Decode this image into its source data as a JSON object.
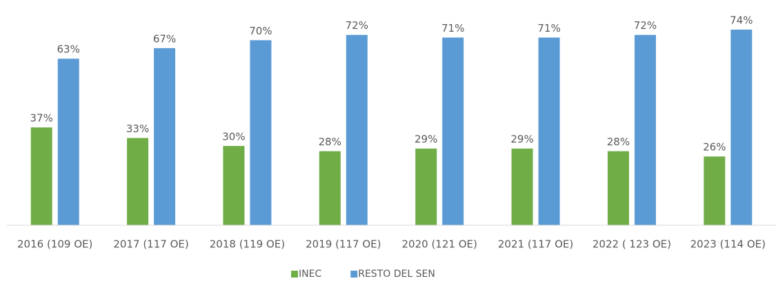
{
  "chart_data": {
    "type": "bar",
    "categories": [
      "2016 (109 OE)",
      "2017 (117 OE)",
      "2018 (119 OE)",
      "2019 (117 OE)",
      "2020 (121 OE)",
      "2021 (117 OE)",
      "2022 ( 123 OE)",
      "2023 (114 OE)"
    ],
    "series": [
      {
        "name": "INEC",
        "color": "#70ad47",
        "values": [
          37,
          33,
          30,
          28,
          29,
          29,
          28,
          26
        ],
        "value_labels": [
          "37%",
          "33%",
          "30%",
          "28%",
          "29%",
          "29%",
          "28%",
          "26%"
        ]
      },
      {
        "name": "RESTO DEL SEN",
        "color": "#5b9bd5",
        "values": [
          63,
          67,
          70,
          72,
          71,
          71,
          72,
          74
        ],
        "value_labels": [
          "63%",
          "67%",
          "70%",
          "72%",
          "71%",
          "71%",
          "72%",
          "74%"
        ]
      }
    ],
    "legend": "bottom"
  }
}
